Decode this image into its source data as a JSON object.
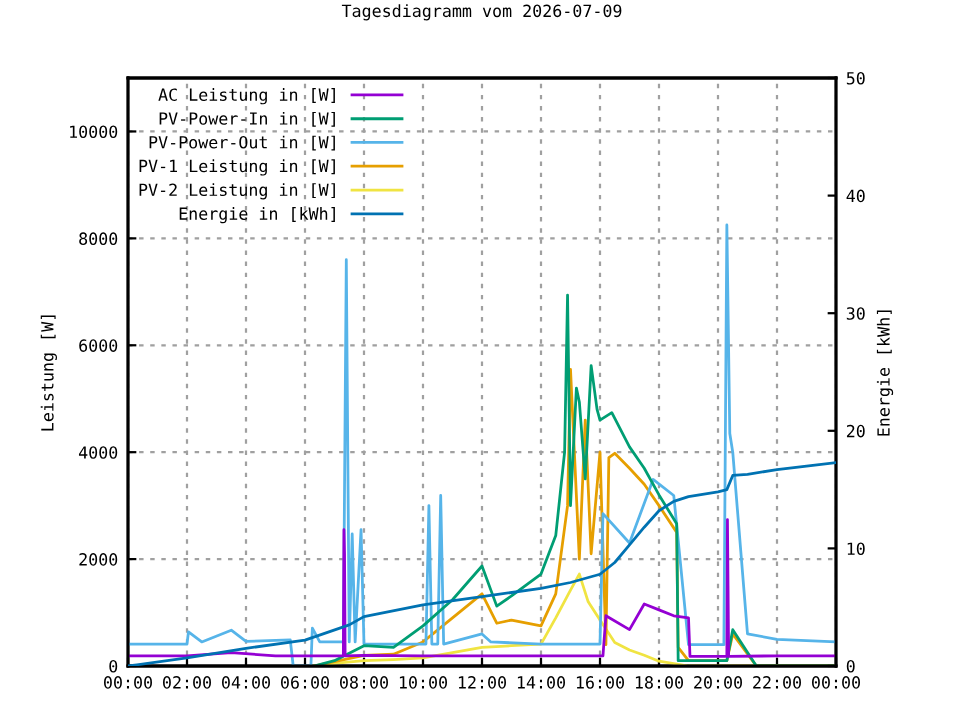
{
  "chart_data": {
    "type": "line",
    "title": "Tagesdiagramm vom 2026-07-09",
    "ylabel": "Leistung [W]",
    "y2label": "Energie [kWh]",
    "xlim": [
      0,
      24
    ],
    "xticks": [
      {
        "value": 0,
        "label": "00:00"
      },
      {
        "value": 2,
        "label": "02:00"
      },
      {
        "value": 4,
        "label": "04:00"
      },
      {
        "value": 6,
        "label": "06:00"
      },
      {
        "value": 8,
        "label": "08:00"
      },
      {
        "value": 10,
        "label": "10:00"
      },
      {
        "value": 12,
        "label": "12:00"
      },
      {
        "value": 14,
        "label": "14:00"
      },
      {
        "value": 16,
        "label": "16:00"
      },
      {
        "value": 18,
        "label": "18:00"
      },
      {
        "value": 20,
        "label": "20:00"
      },
      {
        "value": 22,
        "label": "22:00"
      },
      {
        "value": 24,
        "label": "00:00"
      }
    ],
    "ylim": [
      0,
      11000
    ],
    "yticks": [
      0,
      2000,
      4000,
      6000,
      8000,
      10000
    ],
    "y2lim": [
      0,
      50
    ],
    "y2ticks": [
      0,
      10,
      20,
      30,
      40,
      50
    ],
    "grid": true,
    "legend": "top left",
    "series": [
      {
        "name": "AC Leistung in [W]",
        "color": "#9400d3",
        "x": [
          0,
          2,
          3.5,
          5,
          7.3,
          7.32,
          7.34,
          7.36,
          8,
          10,
          12,
          14,
          16.1,
          16.2,
          17.0,
          17.5,
          18.0,
          18.5,
          19.0,
          19.05,
          20.3,
          20.32,
          20.34,
          20.36,
          22,
          24
        ],
        "values": [
          190,
          190,
          250,
          190,
          190,
          2550,
          2100,
          190,
          200,
          190,
          190,
          190,
          190,
          940,
          680,
          1160,
          1050,
          940,
          900,
          180,
          180,
          2740,
          1500,
          180,
          190,
          190
        ]
      },
      {
        "name": "PV-Power-In in [W]",
        "color": "#009e73",
        "x": [
          6.3,
          7,
          8,
          9,
          10,
          11,
          12,
          12.5,
          13,
          14,
          14.5,
          14.8,
          14.9,
          15.0,
          15.2,
          15.3,
          15.5,
          15.7,
          15.9,
          16.0,
          16.4,
          17,
          17.5,
          18,
          18.6,
          18.65,
          19,
          20.3,
          20.5,
          21.3,
          24
        ],
        "values": [
          0,
          100,
          380,
          350,
          750,
          1240,
          1870,
          1120,
          1310,
          1720,
          2440,
          4000,
          6940,
          3000,
          5200,
          4940,
          3500,
          5620,
          4800,
          4600,
          4740,
          4100,
          3700,
          3200,
          2660,
          100,
          100,
          100,
          680,
          0,
          0
        ]
      },
      {
        "name": "PV-Power-Out in [W]",
        "color": "#56b4e9",
        "x": [
          0,
          2,
          2.05,
          2.5,
          3.5,
          4,
          5.5,
          5.6,
          6.2,
          6.25,
          6.5,
          7.3,
          7.4,
          7.5,
          7.6,
          7.7,
          7.9,
          8.0,
          8.2,
          10.1,
          10.2,
          10.3,
          10.5,
          10.6,
          10.7,
          12,
          12.3,
          14,
          16.0,
          16.1,
          17,
          17.8,
          18.5,
          19.0,
          20.2,
          20.3,
          20.4,
          20.5,
          21,
          22,
          24
        ],
        "values": [
          410,
          410,
          640,
          450,
          670,
          460,
          490,
          0,
          0,
          710,
          450,
          450,
          7600,
          450,
          2470,
          450,
          2550,
          410,
          410,
          410,
          3000,
          410,
          410,
          3190,
          410,
          600,
          450,
          410,
          410,
          2850,
          2300,
          3490,
          3190,
          400,
          400,
          8250,
          4350,
          4000,
          600,
          500,
          450
        ]
      },
      {
        "name": "PV-1 Leistung in [W]",
        "color": "#e69f00",
        "x": [
          6.3,
          7,
          8,
          9,
          10,
          11,
          12,
          12.5,
          13,
          14,
          14.5,
          14.9,
          15.0,
          15.3,
          15.5,
          15.7,
          16.0,
          16.2,
          16.3,
          16.5,
          17,
          17.5,
          18,
          18.6,
          18.65,
          19,
          20.3,
          20.5,
          21.3,
          24
        ],
        "values": [
          0,
          80,
          200,
          220,
          450,
          900,
          1350,
          800,
          860,
          750,
          1350,
          3000,
          5550,
          2000,
          4600,
          2100,
          4000,
          400,
          3900,
          3980,
          3700,
          3400,
          3000,
          2500,
          350,
          100,
          100,
          600,
          0,
          0
        ]
      },
      {
        "name": "PV-2 Leistung in [W]",
        "color": "#f0e442",
        "x": [
          6.3,
          7,
          8,
          9,
          10,
          11,
          12,
          13,
          14,
          14.5,
          15,
          15.3,
          15.6,
          16,
          16.5,
          17,
          17.5,
          18,
          19,
          24
        ],
        "values": [
          0,
          50,
          100,
          120,
          150,
          250,
          350,
          380,
          410,
          900,
          1420,
          1720,
          1200,
          860,
          440,
          300,
          200,
          90,
          0,
          0
        ]
      },
      {
        "name": "Energie in [kWh]",
        "color": "#0072b2",
        "axis": "y2",
        "x": [
          0,
          0.3,
          2,
          4,
          6,
          7.5,
          8,
          10,
          12,
          14,
          15,
          16,
          16.5,
          17,
          17.5,
          18,
          18.5,
          19,
          20,
          20.3,
          20.5,
          21,
          22,
          23,
          24
        ],
        "values": [
          0,
          0.1,
          0.7,
          1.5,
          2.2,
          3.5,
          4.2,
          5.2,
          5.9,
          6.6,
          7.1,
          7.8,
          8.8,
          10.3,
          11.8,
          13.2,
          14.0,
          14.4,
          14.8,
          15.0,
          16.2,
          16.3,
          16.7,
          17.0,
          17.3
        ]
      }
    ]
  }
}
